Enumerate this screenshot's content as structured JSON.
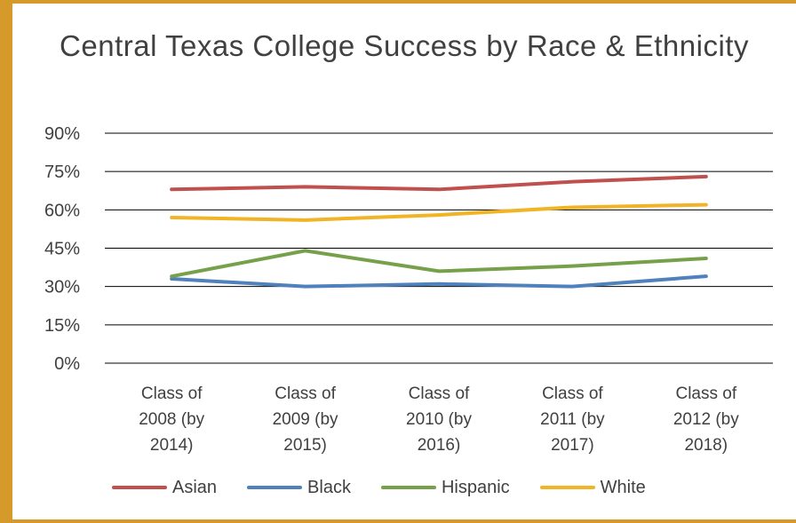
{
  "chart_data": {
    "type": "line",
    "title": "Central Texas College Success by Race & Ethnicity",
    "xlabel": "",
    "ylabel": "",
    "ylim": [
      0,
      90
    ],
    "yticks": [
      "0%",
      "15%",
      "30%",
      "45%",
      "60%",
      "75%",
      "90%"
    ],
    "grid": true,
    "legend_position": "bottom",
    "categories": [
      [
        "Class of",
        "2008 (by",
        "2014)"
      ],
      [
        "Class of",
        "2009 (by",
        "2015)"
      ],
      [
        "Class of",
        "2010 (by",
        "2016)"
      ],
      [
        "Class of",
        "2011 (by",
        "2017)"
      ],
      [
        "Class of",
        "2012 (by",
        "2018)"
      ]
    ],
    "series": [
      {
        "name": "Asian",
        "color": "#c0504d",
        "values": [
          68,
          69,
          68,
          71,
          73
        ]
      },
      {
        "name": "Black",
        "color": "#4f81bd",
        "values": [
          33,
          30,
          31,
          30,
          34
        ]
      },
      {
        "name": "Hispanic",
        "color": "#77a04b",
        "values": [
          34,
          44,
          36,
          38,
          41
        ]
      },
      {
        "name": "White",
        "color": "#f0b424",
        "values": [
          57,
          56,
          58,
          61,
          62
        ]
      }
    ]
  }
}
